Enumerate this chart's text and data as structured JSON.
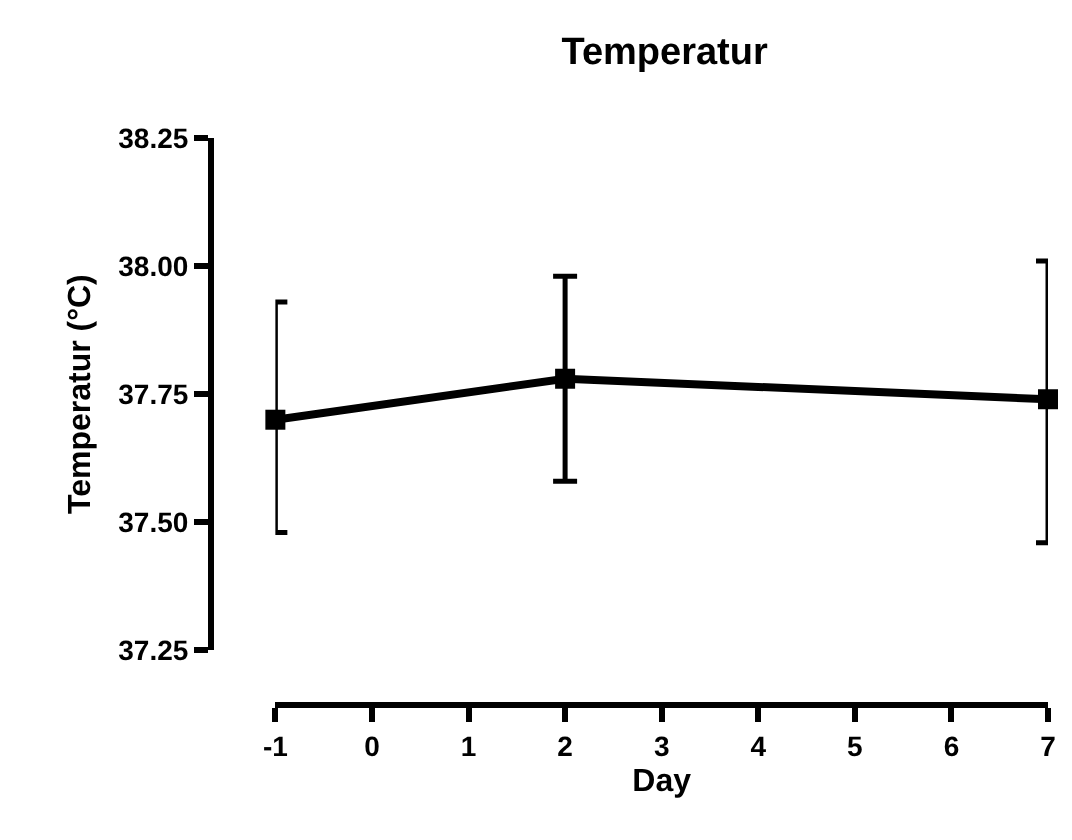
{
  "chart_data": {
    "type": "line",
    "title": "Temperatur",
    "xlabel": "Day",
    "ylabel": "Temperatur (°C)",
    "x": [
      -1,
      2,
      7
    ],
    "series": [
      {
        "color": "#000000",
        "values": [
          37.7,
          37.78,
          37.74
        ],
        "errors": [
          [
            37.48,
            37.93
          ],
          [
            37.58,
            37.98
          ],
          [
            37.46,
            38.01
          ]
        ]
      }
    ],
    "xlim": [
      -1,
      7
    ],
    "xticks": [
      -1,
      0,
      1,
      2,
      3,
      4,
      5,
      6,
      7
    ],
    "ylim": [
      37.25,
      38.25
    ],
    "yticks": [
      37.25,
      {
        "value": 37.5,
        "label": "37.50"
      },
      37.75,
      {
        "value": 38.0,
        "label": "38.00"
      },
      38.25
    ],
    "marker": "square",
    "line_style": "solid"
  }
}
